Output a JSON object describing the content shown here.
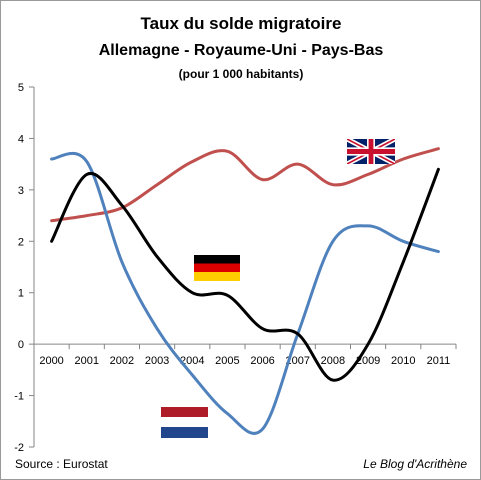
{
  "chart_data": {
    "type": "line",
    "title": "Taux du solde migratoire",
    "subtitle": "Allemagne - Royaume-Uni - Pays-Bas",
    "subtitle2": "(pour 1 000 habitants)",
    "x": [
      "2000",
      "2001",
      "2002",
      "2003",
      "2004",
      "2005",
      "2006",
      "2007",
      "2008",
      "2009",
      "2010",
      "2011"
    ],
    "ylim": [
      -2,
      5
    ],
    "yticks": [
      "5",
      "4",
      "3",
      "2",
      "1",
      "0",
      "-1",
      "-2"
    ],
    "grid": false,
    "legend": "flags",
    "series": [
      {
        "color": "#000000",
        "flag": "germany",
        "values": [
          2.0,
          3.3,
          2.7,
          1.7,
          1.0,
          0.95,
          0.3,
          0.2,
          -0.7,
          0.0,
          1.6,
          3.4
        ]
      },
      {
        "color": "#c0504d",
        "flag": "united-kingdom",
        "values": [
          2.4,
          2.5,
          2.65,
          3.1,
          3.55,
          3.75,
          3.2,
          3.5,
          3.1,
          3.3,
          3.6,
          3.8
        ]
      },
      {
        "color": "#4f81bd",
        "flag": "netherlands",
        "values": [
          3.6,
          3.55,
          1.6,
          0.3,
          -0.6,
          -1.35,
          -1.65,
          0.2,
          2.0,
          2.3,
          2.0,
          1.8
        ]
      }
    ]
  },
  "footer": {
    "source": "Source : Eurostat",
    "credit": "Le Blog d'Acrithène"
  }
}
